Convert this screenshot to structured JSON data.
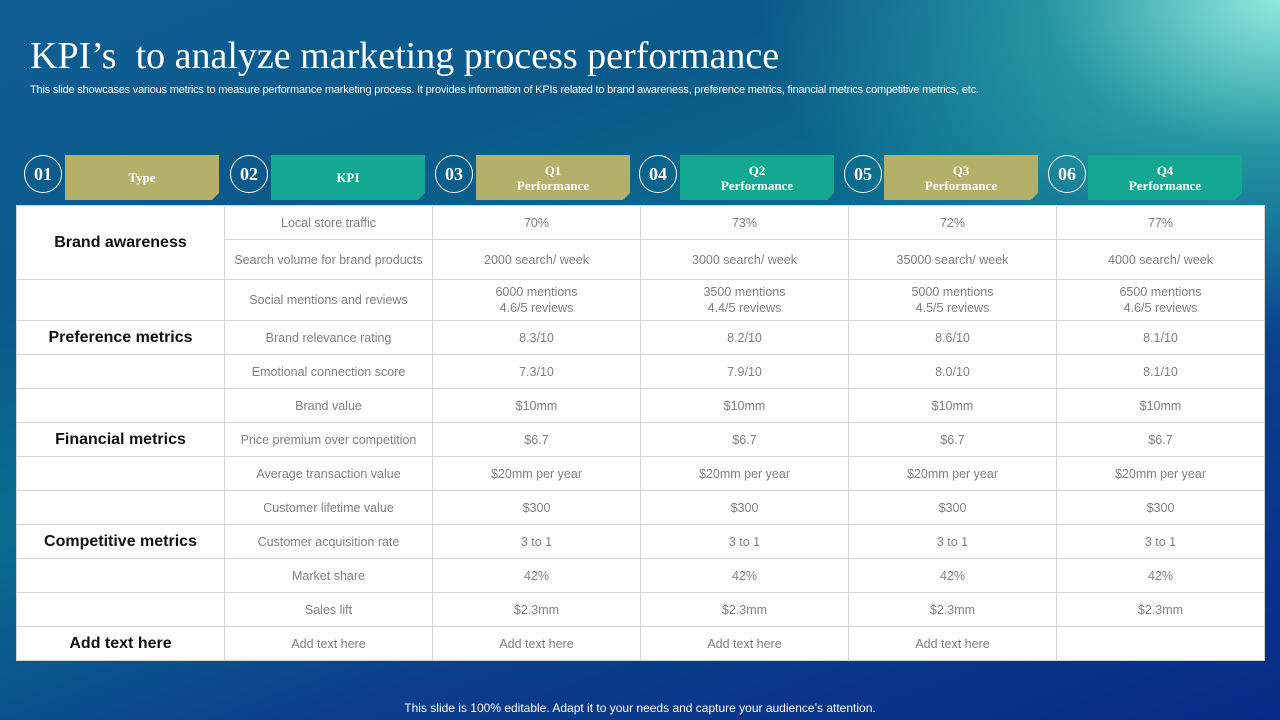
{
  "title": "KPI’s  to analyze marketing process performance",
  "subtitle": "This slide showcases various metrics to measure performance marketing process. It provides information of KPIs related to brand awareness, preference metrics, financial metrics competitive metrics, etc.",
  "colors": {
    "olive": "#b3b06a",
    "teal": "#14a893",
    "background_dark": "#072a86",
    "accent_light": "#96f0e1"
  },
  "headers": [
    {
      "num": "01",
      "line1": "Type",
      "line2": ""
    },
    {
      "num": "02",
      "line1": "KPI",
      "line2": ""
    },
    {
      "num": "03",
      "line1": "Q1",
      "line2": "Performance"
    },
    {
      "num": "04",
      "line1": "Q2",
      "line2": "Performance"
    },
    {
      "num": "05",
      "line1": "Q3",
      "line2": "Performance"
    },
    {
      "num": "06",
      "line1": "Q4",
      "line2": "Performance"
    }
  ],
  "rows": [
    {
      "type": "Brand awareness",
      "kpi": "Local store traffic",
      "q1": "70%",
      "q2": "73%",
      "q3": "72%",
      "q4": "77%"
    },
    {
      "type": "",
      "kpi": "Search volume for brand products",
      "q1": "2000 search/ week",
      "q2": "3000 search/ week",
      "q3": "35000 search/ week",
      "q4": "4000 search/ week"
    },
    {
      "type": "",
      "kpi": "Social mentions and reviews",
      "q1a": "6000 mentions",
      "q1b": "4.6/5 reviews",
      "q2a": "3500 mentions",
      "q2b": "4.4/5 reviews",
      "q3a": "5000 mentions",
      "q3b": "4.5/5 reviews",
      "q4a": "6500 mentions",
      "q4b": "4.6/5 reviews"
    },
    {
      "type": "Preference metrics",
      "kpi": "Brand relevance  rating",
      "q1": "8.3/10",
      "q2": "8.2/10",
      "q3": "8.6/10",
      "q4": "8.1/10"
    },
    {
      "type": "",
      "kpi": "Emotional connection score",
      "q1": "7.3/10",
      "q2": "7.9/10",
      "q3": "8.0/10",
      "q4": "8.1/10"
    },
    {
      "type": "",
      "kpi": "Brand value",
      "q1": "$10mm",
      "q2": "$10mm",
      "q3": "$10mm",
      "q4": "$10mm"
    },
    {
      "type": "Financial metrics",
      "kpi": "Price premium  over  competition",
      "q1": "$6.7",
      "q2": "$6.7",
      "q3": "$6.7",
      "q4": "$6.7"
    },
    {
      "type": "",
      "kpi": "Average  transaction value",
      "q1": "$20mm  per year",
      "q2": "$20mm  per year",
      "q3": "$20mm  per year",
      "q4": "$20mm  per year"
    },
    {
      "type": "",
      "kpi": "Customer lifetime value",
      "q1": "$300",
      "q2": "$300",
      "q3": "$300",
      "q4": "$300"
    },
    {
      "type": "Competitive metrics",
      "kpi": "Customer acquisition rate",
      "q1": "3 to 1",
      "q2": "3 to 1",
      "q3": "3 to 1",
      "q4": "3 to 1"
    },
    {
      "type": "",
      "kpi": "Market share",
      "q1": "42%",
      "q2": "42%",
      "q3": "42%",
      "q4": "42%"
    },
    {
      "type": "",
      "kpi": "Sales lift",
      "q1": "$2.3mm",
      "q2": "$2.3mm",
      "q3": "$2.3mm",
      "q4": "$2.3mm"
    },
    {
      "type": "Add text here",
      "kpi": "Add text here",
      "q1": "Add text here",
      "q2": "Add text here",
      "q3": "Add text here",
      "q4": ""
    }
  ],
  "footer": "This slide is 100% editable. Adapt it to your needs and capture your audience’s attention."
}
